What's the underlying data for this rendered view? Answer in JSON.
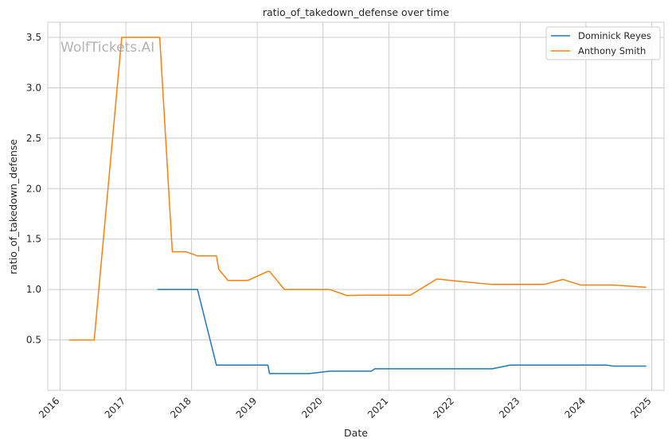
{
  "chart_data": {
    "type": "line",
    "title": "ratio_of_takedown_defense over time",
    "xlabel": "Date",
    "ylabel": "ratio_of_takedown_defense",
    "watermark": "WolfTickets.AI",
    "x_ticks": [
      "2016",
      "2017",
      "2018",
      "2019",
      "2020",
      "2021",
      "2022",
      "2023",
      "2024",
      "2025"
    ],
    "y_ticks": [
      "0.5",
      "1.0",
      "1.5",
      "2.0",
      "2.5",
      "3.0",
      "3.5"
    ],
    "xlim": [
      "2015-10-25",
      "2025-03-10"
    ],
    "ylim": [
      0.0,
      3.65
    ],
    "grid": true,
    "legend_position": "top-right",
    "series": [
      {
        "name": "Dominick Reyes",
        "color": "#1f77b4",
        "points": [
          [
            "2017-06-25",
            1.0
          ],
          [
            "2018-02-03",
            1.0
          ],
          [
            "2018-05-19",
            0.25
          ],
          [
            "2019-03-01",
            0.25
          ],
          [
            "2019-03-10",
            0.167
          ],
          [
            "2019-10-18",
            0.167
          ],
          [
            "2020-02-08",
            0.19
          ],
          [
            "2020-09-26",
            0.19
          ],
          [
            "2020-10-15",
            0.214
          ],
          [
            "2022-07-30",
            0.214
          ],
          [
            "2022-11-05",
            0.25
          ],
          [
            "2024-04-27",
            0.25
          ],
          [
            "2024-06-01",
            0.24
          ],
          [
            "2024-12-01",
            0.24
          ]
        ]
      },
      {
        "name": "Anthony Smith",
        "color": "#ff7f0e",
        "points": [
          [
            "2016-02-20",
            0.5
          ],
          [
            "2016-07-09",
            0.5
          ],
          [
            "2016-12-09",
            3.5
          ],
          [
            "2017-07-08",
            3.5
          ],
          [
            "2017-09-16",
            1.375
          ],
          [
            "2017-12-01",
            1.375
          ],
          [
            "2018-02-03",
            1.333
          ],
          [
            "2018-05-19",
            1.333
          ],
          [
            "2018-06-01",
            1.2
          ],
          [
            "2018-07-22",
            1.09
          ],
          [
            "2018-11-10",
            1.09
          ],
          [
            "2019-03-01",
            1.18
          ],
          [
            "2019-03-10",
            1.18
          ],
          [
            "2019-06-01",
            1.0
          ],
          [
            "2020-02-08",
            1.0
          ],
          [
            "2020-05-13",
            0.94
          ],
          [
            "2020-08-29",
            0.944
          ],
          [
            "2021-05-01",
            0.944
          ],
          [
            "2021-09-25",
            1.105
          ],
          [
            "2022-01-15",
            1.083
          ],
          [
            "2022-07-30",
            1.05
          ],
          [
            "2023-05-13",
            1.05
          ],
          [
            "2023-08-26",
            1.1
          ],
          [
            "2023-12-01",
            1.045
          ],
          [
            "2024-06-01",
            1.045
          ],
          [
            "2024-12-01",
            1.022
          ]
        ]
      }
    ]
  }
}
